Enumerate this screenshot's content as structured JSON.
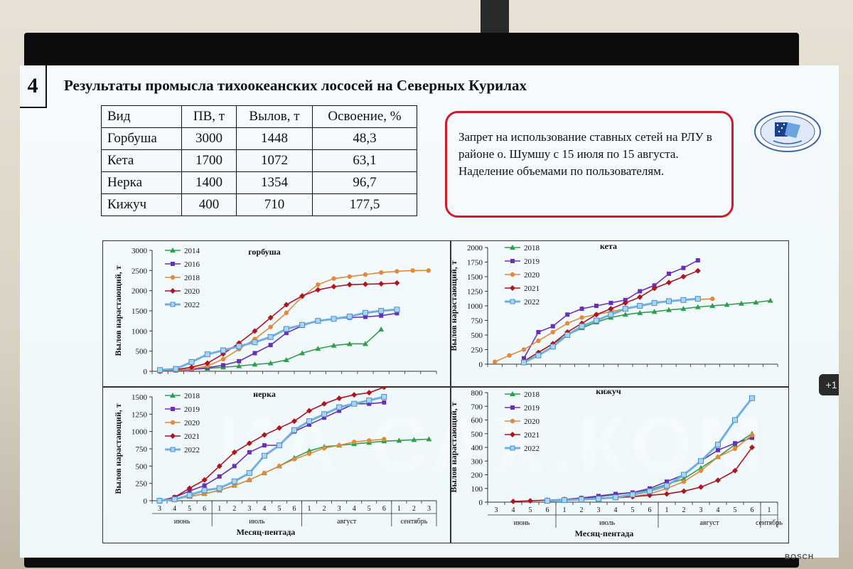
{
  "slide": {
    "number": "4",
    "title": "Результаты промысла тихоокеанских лососей на Северных Курилах"
  },
  "table": {
    "headers": [
      "Вид",
      "ПВ, т",
      "Вылов, т",
      "Освоение, %"
    ],
    "rows": [
      [
        "Горбуша",
        "3000",
        "1448",
        "48,3"
      ],
      [
        "Кета",
        "1700",
        "1072",
        "63,1"
      ],
      [
        "Нерка",
        "1400",
        "1354",
        "96,7"
      ],
      [
        "Кижуч",
        "400",
        "710",
        "177,5"
      ]
    ]
  },
  "notice": {
    "line1": "Запрет на использование ставных сетей на РЛУ в районе о. Шумшу с 15 июля по 15 августа.",
    "line2": "Наделение объемами по пользователям."
  },
  "badge": {
    "label": "+1"
  },
  "watermark": {
    "text": "ИА САХ.КОМ"
  },
  "brand": {
    "text": "BOSCH"
  },
  "colors": {
    "notice_border": "#d01b2a"
  },
  "chart_data": [
    {
      "type": "line",
      "title": "горбуша",
      "ylabel": "Вылов нарастающий, т",
      "ylim": [
        0,
        3000
      ],
      "yticks": [
        0,
        500,
        1000,
        1500,
        2000,
        2500,
        3000
      ],
      "series": [
        {
          "name": "2014",
          "color": "#2e9e4a",
          "marker": "triangle",
          "x": [
            0,
            1,
            2,
            3,
            4,
            5,
            6,
            7,
            8,
            9,
            10,
            11,
            12,
            13,
            14
          ],
          "values": [
            10,
            30,
            50,
            70,
            100,
            130,
            170,
            200,
            280,
            450,
            560,
            640,
            680,
            680,
            1040
          ]
        },
        {
          "name": "2016",
          "color": "#6a2fb8",
          "marker": "square",
          "x": [
            0,
            1,
            2,
            3,
            4,
            5,
            6,
            7,
            8,
            9,
            10,
            11,
            12,
            13,
            14,
            15
          ],
          "values": [
            0,
            20,
            40,
            90,
            150,
            250,
            450,
            650,
            950,
            1130,
            1250,
            1300,
            1330,
            1350,
            1380,
            1440
          ]
        },
        {
          "name": "2018",
          "color": "#e08a3c",
          "marker": "circle",
          "x": [
            0,
            1,
            2,
            3,
            4,
            5,
            6,
            7,
            8,
            9,
            10,
            11,
            12,
            13,
            14,
            15,
            16,
            17
          ],
          "values": [
            0,
            20,
            60,
            130,
            300,
            550,
            800,
            1100,
            1450,
            1850,
            2150,
            2300,
            2350,
            2400,
            2450,
            2480,
            2500,
            2500
          ]
        },
        {
          "name": "2020",
          "color": "#b0141e",
          "marker": "diamond",
          "x": [
            0,
            1,
            2,
            3,
            4,
            5,
            6,
            7,
            8,
            9,
            10,
            11,
            12,
            13,
            14,
            15
          ],
          "values": [
            0,
            40,
            100,
            200,
            430,
            700,
            1000,
            1330,
            1650,
            1870,
            2020,
            2100,
            2150,
            2160,
            2170,
            2190
          ]
        },
        {
          "name": "2022",
          "color": "#6fb0e0",
          "marker": "square-thick",
          "x": [
            0,
            1,
            2,
            3,
            4,
            5,
            6,
            7,
            8,
            9,
            10,
            11,
            12,
            13,
            14,
            15
          ],
          "values": [
            30,
            60,
            230,
            420,
            520,
            620,
            720,
            850,
            1050,
            1150,
            1250,
            1300,
            1360,
            1450,
            1500,
            1530
          ]
        }
      ]
    },
    {
      "type": "line",
      "title": "кета",
      "ylabel": "Вылов нарастающий, т",
      "ylim": [
        0,
        2000
      ],
      "yticks": [
        0,
        250,
        500,
        750,
        1000,
        1250,
        1500,
        1750,
        2000
      ],
      "series": [
        {
          "name": "2018",
          "color": "#2e9e4a",
          "marker": "triangle",
          "x": [
            2,
            3,
            4,
            5,
            6,
            7,
            8,
            9,
            10,
            11,
            12,
            13,
            14,
            15,
            16,
            17,
            18,
            19
          ],
          "values": [
            50,
            200,
            350,
            500,
            620,
            720,
            800,
            850,
            880,
            900,
            930,
            950,
            980,
            1000,
            1020,
            1040,
            1060,
            1090
          ]
        },
        {
          "name": "2019",
          "color": "#6a2fb8",
          "marker": "square",
          "x": [
            2,
            3,
            4,
            5,
            6,
            7,
            8,
            9,
            10,
            11,
            12,
            13,
            14
          ],
          "values": [
            100,
            550,
            650,
            850,
            950,
            1000,
            1050,
            1100,
            1250,
            1350,
            1550,
            1650,
            1780
          ]
        },
        {
          "name": "2020",
          "color": "#e08a3c",
          "marker": "circle",
          "x": [
            0,
            1,
            2,
            3,
            4,
            5,
            6,
            7,
            8,
            9,
            10,
            11,
            12,
            13,
            14,
            15
          ],
          "values": [
            40,
            150,
            250,
            400,
            550,
            700,
            800,
            850,
            900,
            950,
            1000,
            1050,
            1080,
            1100,
            1110,
            1120
          ]
        },
        {
          "name": "2021",
          "color": "#b0141e",
          "marker": "diamond",
          "x": [
            2,
            3,
            4,
            5,
            6,
            7,
            8,
            9,
            10,
            11,
            12,
            13,
            14
          ],
          "values": [
            50,
            200,
            350,
            550,
            700,
            850,
            950,
            1050,
            1150,
            1300,
            1400,
            1500,
            1600
          ]
        },
        {
          "name": "2022",
          "color": "#6fb0e0",
          "marker": "square-thick",
          "x": [
            2,
            3,
            4,
            5,
            6,
            7,
            8,
            9,
            10,
            11,
            12,
            13,
            14
          ],
          "values": [
            30,
            150,
            300,
            500,
            650,
            750,
            850,
            950,
            1000,
            1050,
            1080,
            1100,
            1120
          ]
        }
      ]
    },
    {
      "type": "line",
      "title": "нерка",
      "ylabel": "Вылов нарастающий, т",
      "ylim": [
        0,
        1500
      ],
      "yticks": [
        0,
        250,
        500,
        750,
        1000,
        1250,
        1500
      ],
      "xaxis_title": "Месяц-пентада",
      "x_ticks": [
        "3",
        "4",
        "5",
        "6",
        "1",
        "2",
        "3",
        "4",
        "5",
        "6",
        "1",
        "2",
        "3",
        "4",
        "5",
        "6",
        "1",
        "2",
        "3"
      ],
      "months": [
        "июнь",
        "июль",
        "август",
        "сентябрь"
      ],
      "series": [
        {
          "name": "2018",
          "color": "#2e9e4a",
          "marker": "triangle",
          "x": [
            0,
            1,
            2,
            3,
            4,
            5,
            6,
            7,
            8,
            9,
            10,
            11,
            12,
            13,
            14,
            15,
            16,
            17,
            18
          ],
          "values": [
            0,
            20,
            60,
            100,
            150,
            220,
            300,
            400,
            500,
            620,
            720,
            780,
            800,
            820,
            840,
            860,
            870,
            880,
            890
          ]
        },
        {
          "name": "2019",
          "color": "#6a2fb8",
          "marker": "square",
          "x": [
            0,
            1,
            2,
            3,
            4,
            5,
            6,
            7,
            8,
            9,
            10,
            11,
            12,
            13,
            14,
            15
          ],
          "values": [
            0,
            50,
            140,
            220,
            350,
            500,
            700,
            800,
            800,
            1000,
            1100,
            1200,
            1300,
            1400,
            1400,
            1420
          ]
        },
        {
          "name": "2020",
          "color": "#e08a3c",
          "marker": "circle",
          "x": [
            0,
            1,
            2,
            3,
            4,
            5,
            6,
            7,
            8,
            9,
            10,
            11,
            12,
            13,
            14,
            15
          ],
          "values": [
            0,
            20,
            60,
            100,
            150,
            220,
            300,
            400,
            500,
            600,
            680,
            760,
            800,
            850,
            870,
            890
          ]
        },
        {
          "name": "2021",
          "color": "#b0141e",
          "marker": "diamond",
          "x": [
            0,
            1,
            2,
            3,
            4,
            5,
            6,
            7,
            8,
            9,
            10,
            11,
            12,
            13,
            14,
            15
          ],
          "values": [
            0,
            50,
            180,
            300,
            500,
            700,
            830,
            950,
            1050,
            1150,
            1300,
            1400,
            1480,
            1530,
            1560,
            1640
          ]
        },
        {
          "name": "2022",
          "color": "#6fb0e0",
          "marker": "square-thick",
          "x": [
            0,
            1,
            2,
            3,
            4,
            5,
            6,
            7,
            8,
            9,
            10,
            11,
            12,
            13,
            14,
            15
          ],
          "values": [
            0,
            20,
            80,
            150,
            180,
            280,
            400,
            650,
            800,
            1020,
            1150,
            1250,
            1350,
            1400,
            1450,
            1500
          ]
        }
      ]
    },
    {
      "type": "line",
      "title": "кижуч",
      "ylabel": "Вылов нарастающий, т",
      "ylim": [
        0,
        800
      ],
      "yticks": [
        0,
        100,
        200,
        300,
        400,
        500,
        600,
        700,
        800
      ],
      "xaxis_title": "Месяц-пентада",
      "x_ticks": [
        "3",
        "4",
        "5",
        "6",
        "1",
        "2",
        "3",
        "4",
        "5",
        "6",
        "1",
        "2",
        "3",
        "4",
        "5",
        "6",
        "1"
      ],
      "months": [
        "июнь",
        "июль",
        "август",
        "сентябрь"
      ],
      "series": [
        {
          "name": "2018",
          "color": "#2e9e4a",
          "marker": "triangle",
          "x": [
            3,
            4,
            5,
            6,
            7,
            8,
            9,
            10,
            11,
            12,
            13,
            14,
            15
          ],
          "values": [
            10,
            20,
            30,
            40,
            55,
            70,
            90,
            130,
            170,
            250,
            330,
            420,
            500
          ]
        },
        {
          "name": "2019",
          "color": "#6a2fb8",
          "marker": "square",
          "x": [
            3,
            4,
            5,
            6,
            7,
            8,
            9,
            10,
            11,
            12,
            13,
            14,
            15
          ],
          "values": [
            10,
            20,
            30,
            45,
            60,
            70,
            100,
            150,
            200,
            300,
            380,
            430,
            470
          ]
        },
        {
          "name": "2020",
          "color": "#e08a3c",
          "marker": "circle",
          "x": [
            3,
            4,
            5,
            6,
            7,
            8,
            9,
            10,
            11,
            12,
            13,
            14,
            15
          ],
          "values": [
            10,
            15,
            20,
            25,
            30,
            40,
            60,
            100,
            150,
            230,
            330,
            390,
            490
          ]
        },
        {
          "name": "2021",
          "color": "#b0141e",
          "marker": "diamond",
          "x": [
            1,
            2,
            3,
            4,
            5,
            6,
            7,
            8,
            9,
            10,
            11,
            12,
            13,
            14,
            15
          ],
          "values": [
            5,
            10,
            15,
            20,
            25,
            30,
            35,
            40,
            50,
            60,
            80,
            110,
            160,
            230,
            400
          ]
        },
        {
          "name": "2022",
          "color": "#6fb0e0",
          "marker": "square-thick",
          "x": [
            3,
            4,
            5,
            6,
            7,
            8,
            9,
            10,
            11,
            12,
            13,
            14,
            15
          ],
          "values": [
            10,
            15,
            20,
            25,
            35,
            55,
            80,
            120,
            200,
            300,
            420,
            600,
            760
          ]
        }
      ]
    }
  ]
}
